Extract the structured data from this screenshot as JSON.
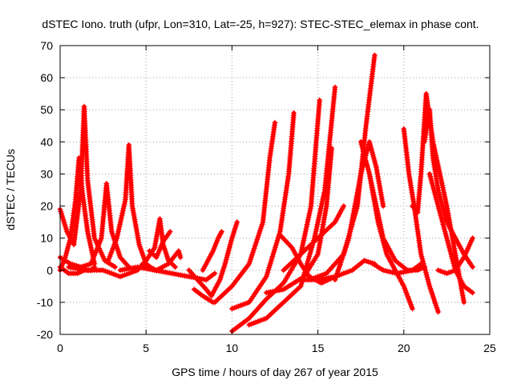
{
  "chart_data": {
    "type": "scatter",
    "title": "dSTEC Iono. truth (ufpr, Lon=310, Lat=-25, h=927): STEC-STEC_elemax in phase cont.",
    "xlabel": "GPS time / hours of day 267 of year 2015",
    "ylabel": "dSTEC  / TECUs",
    "xlim": [
      0,
      25
    ],
    "ylim": [
      -20,
      70
    ],
    "xticks": [
      0,
      5,
      10,
      15,
      20,
      25
    ],
    "yticks": [
      -20,
      -10,
      0,
      10,
      20,
      30,
      40,
      50,
      60,
      70
    ],
    "grid": true,
    "marker": "+",
    "color": "#ff0000",
    "series": [
      {
        "x": [
          0.0,
          0.4,
          0.8,
          1.2,
          1.4,
          1.6,
          2.0,
          2.6,
          3.2
        ],
        "y": [
          19,
          12,
          8,
          25,
          51,
          28,
          10,
          3,
          1
        ]
      },
      {
        "x": [
          0.0,
          0.3,
          0.6,
          0.9,
          1.1,
          1.3,
          1.6,
          2.0
        ],
        "y": [
          0,
          4,
          10,
          22,
          35,
          24,
          12,
          2
        ]
      },
      {
        "x": [
          0.0,
          0.5,
          1.0,
          1.4,
          1.8,
          2.0
        ],
        "y": [
          1,
          -1,
          -1,
          0,
          0,
          1
        ]
      },
      {
        "x": [
          0.0,
          0.6,
          1.2,
          1.8,
          2.4,
          2.7,
          3.0,
          3.5,
          4.0
        ],
        "y": [
          4,
          2,
          1,
          2,
          10,
          27,
          12,
          4,
          1
        ]
      },
      {
        "x": [
          0.5,
          1.5,
          2.5,
          3.0,
          3.5,
          4.0,
          4.5
        ],
        "y": [
          1,
          0,
          0,
          -1,
          -2,
          -1,
          0
        ]
      },
      {
        "x": [
          2.8,
          3.3,
          3.8,
          4.0,
          4.2,
          4.6,
          5.0,
          5.5
        ],
        "y": [
          3,
          10,
          22,
          39,
          20,
          8,
          2,
          0
        ]
      },
      {
        "x": [
          4.5,
          5.0,
          5.5,
          5.8,
          6.0,
          6.3,
          6.7
        ],
        "y": [
          0,
          3,
          7,
          16,
          8,
          3,
          1
        ]
      },
      {
        "x": [
          5.2,
          5.6,
          6.0,
          6.4
        ],
        "y": [
          6,
          4,
          9,
          12
        ]
      },
      {
        "x": [
          4.8,
          5.6,
          6.3,
          6.9,
          7.0
        ],
        "y": [
          2,
          0,
          2,
          6,
          4
        ]
      },
      {
        "x": [
          3.5,
          4.5,
          5.5,
          6.5,
          7.5,
          8.5,
          9.0
        ],
        "y": [
          0,
          1,
          0,
          -1,
          -2,
          -3,
          -1
        ]
      },
      {
        "x": [
          7.5,
          8.0,
          8.5,
          8.8,
          9.0,
          9.3,
          9.6,
          10.0,
          10.3
        ],
        "y": [
          0,
          -3,
          -6,
          -8,
          -6,
          -3,
          2,
          10,
          15
        ]
      },
      {
        "x": [
          8.3,
          8.6,
          8.9,
          9.2,
          9.4
        ],
        "y": [
          0,
          3,
          6,
          10,
          12
        ]
      },
      {
        "x": [
          7.8,
          8.3,
          8.6,
          8.9
        ],
        "y": [
          -6,
          -8,
          -9,
          -10
        ]
      },
      {
        "x": [
          9.0,
          10.0,
          11.0,
          11.8,
          12.2,
          12.5
        ],
        "y": [
          -10,
          -5,
          2,
          15,
          35,
          46
        ]
      },
      {
        "x": [
          10.0,
          11.0,
          12.0,
          12.8,
          13.3,
          13.6
        ],
        "y": [
          -12,
          -10,
          -2,
          12,
          30,
          49
        ]
      },
      {
        "x": [
          10.0,
          11.0,
          12.0,
          13.0,
          14.0,
          14.6,
          15.1
        ],
        "y": [
          -19,
          -15,
          -9,
          -4,
          5,
          20,
          53
        ]
      },
      {
        "x": [
          11.0,
          12.0,
          13.0,
          14.0,
          14.8,
          15.4,
          16.0
        ],
        "y": [
          -17,
          -15,
          -10,
          -5,
          10,
          25,
          57
        ]
      },
      {
        "x": [
          12.0,
          13.0,
          13.6,
          14.2,
          15.0,
          15.5,
          15.8
        ],
        "y": [
          -7,
          -6,
          -4,
          -2,
          5,
          20,
          38
        ]
      },
      {
        "x": [
          12.8,
          13.5,
          14.0,
          14.5,
          15.2,
          16.0
        ],
        "y": [
          11,
          7,
          2,
          -2,
          -4,
          -2
        ]
      },
      {
        "x": [
          13.0,
          14.0,
          15.0,
          16.0,
          16.5
        ],
        "y": [
          0,
          5,
          10,
          15,
          20
        ]
      },
      {
        "x": [
          14.0,
          15.0,
          16.0,
          17.0,
          17.7,
          18.3
        ],
        "y": [
          -3,
          -3,
          -2,
          0,
          3,
          2
        ]
      },
      {
        "x": [
          14.5,
          15.5,
          16.5,
          17.3,
          17.8,
          18.3
        ],
        "y": [
          -3,
          -1,
          5,
          20,
          45,
          67
        ]
      },
      {
        "x": [
          16.0,
          16.8,
          17.5,
          18.0,
          18.4,
          18.8
        ],
        "y": [
          -3,
          10,
          30,
          40,
          32,
          20
        ]
      },
      {
        "x": [
          17.5,
          18.0,
          18.5,
          19.0,
          19.5,
          20.0,
          20.5
        ],
        "y": [
          40,
          30,
          15,
          5,
          0,
          -5,
          -12
        ]
      },
      {
        "x": [
          18.0,
          18.8,
          19.5,
          20.2,
          20.8,
          21.2
        ],
        "y": [
          30,
          10,
          3,
          0,
          0,
          1
        ]
      },
      {
        "x": [
          18.2,
          18.8,
          19.6,
          20.5,
          21.0
        ],
        "y": [
          2,
          0,
          -1,
          0,
          2
        ]
      },
      {
        "x": [
          20.0,
          20.3,
          20.6,
          21.0,
          21.5,
          22.0
        ],
        "y": [
          44,
          30,
          20,
          5,
          -5,
          -13
        ]
      },
      {
        "x": [
          20.5,
          20.8,
          21.0,
          21.3,
          21.7,
          22.5,
          23.5
        ],
        "y": [
          20,
          18,
          30,
          55,
          40,
          20,
          -10
        ]
      },
      {
        "x": [
          21.2,
          21.5,
          21.7,
          22.0,
          22.5,
          23.5,
          24.0
        ],
        "y": [
          40,
          50,
          35,
          25,
          15,
          5,
          1
        ]
      },
      {
        "x": [
          21.5,
          22.0,
          22.5,
          23.0,
          23.5,
          24.0
        ],
        "y": [
          30,
          20,
          10,
          0,
          -5,
          -7
        ]
      },
      {
        "x": [
          22.0,
          22.5,
          23.0,
          23.5,
          24.0
        ],
        "y": [
          0,
          -1,
          0,
          4,
          10
        ]
      }
    ]
  }
}
